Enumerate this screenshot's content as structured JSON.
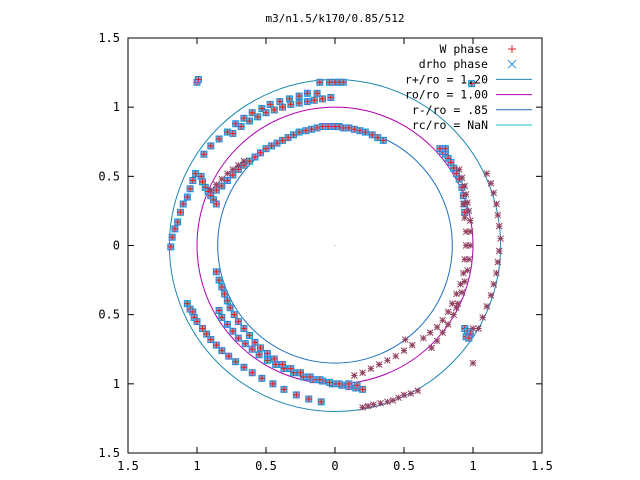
{
  "chart_data": {
    "type": "scatter",
    "title": "m3/n1.5/k170/0.85/512",
    "xlim": [
      -1.5,
      1.5
    ],
    "ylim": [
      -1.5,
      1.5
    ],
    "x_tick_labels": [
      "1.5",
      "1",
      "0.5",
      "0",
      "0.5",
      "1",
      "1.5"
    ],
    "x_ticks": [
      -1.5,
      -1,
      -0.5,
      0,
      0.5,
      1,
      1.5
    ],
    "y_tick_labels": [
      "1.5",
      "1",
      "0.5",
      "0",
      "0.5",
      "1",
      "1.5"
    ],
    "y_ticks": [
      1.5,
      1,
      0.5,
      0,
      -0.5,
      -1,
      -1.5
    ],
    "grid": false,
    "legend_position": "top-right",
    "circles": [
      {
        "name": "r+/ro = 1.20",
        "r": 1.2,
        "color": "#1e88b0"
      },
      {
        "name": "ro/ro = 1.00",
        "r": 1.0,
        "color": "#b000b0"
      },
      {
        "name": "r-/ro = .85",
        "r": 0.85,
        "color": "#2070c0"
      },
      {
        "name": "rc/ro = NaN",
        "r": null,
        "color": "#20c0c0"
      }
    ],
    "series": [
      {
        "name": "W phase",
        "marker": "plus",
        "color": "#e02020"
      },
      {
        "name": "drho phase",
        "marker": "cross",
        "color": "#2090e0"
      }
    ],
    "star_color": "#904060",
    "box_points": [
      [
        -1.0,
        1.18
      ],
      [
        -0.99,
        1.2
      ],
      [
        0.99,
        1.17
      ],
      [
        -0.11,
        1.18
      ],
      [
        -0.04,
        1.18
      ],
      [
        0.0,
        1.18
      ],
      [
        0.03,
        1.18
      ],
      [
        0.06,
        1.18
      ],
      [
        -0.13,
        1.1
      ],
      [
        -0.2,
        1.1
      ],
      [
        -0.26,
        1.08
      ],
      [
        -0.33,
        1.06
      ],
      [
        -0.4,
        1.04
      ],
      [
        -0.47,
        1.02
      ],
      [
        -0.53,
        0.99
      ],
      [
        -0.6,
        0.96
      ],
      [
        -0.66,
        0.92
      ],
      [
        -0.72,
        0.88
      ],
      [
        -0.78,
        0.82
      ],
      [
        -0.84,
        0.77
      ],
      [
        -0.9,
        0.72
      ],
      [
        -0.95,
        0.66
      ],
      [
        -1.01,
        0.52
      ],
      [
        -1.03,
        0.47
      ],
      [
        -1.05,
        0.41
      ],
      [
        -1.07,
        0.35
      ],
      [
        -1.1,
        0.3
      ],
      [
        -1.12,
        0.24
      ],
      [
        -1.14,
        0.17
      ],
      [
        -1.16,
        0.12
      ],
      [
        -1.18,
        0.06
      ],
      [
        -1.19,
        -0.01
      ],
      [
        -1.07,
        -0.42
      ],
      [
        -1.05,
        -0.46
      ],
      [
        -1.03,
        -0.48
      ],
      [
        -1.02,
        -0.52
      ],
      [
        -1.0,
        -0.55
      ],
      [
        -0.96,
        -0.6
      ],
      [
        -0.93,
        -0.64
      ],
      [
        -0.9,
        -0.68
      ],
      [
        -0.86,
        -0.72
      ],
      [
        -0.82,
        -0.76
      ],
      [
        -0.77,
        -0.8
      ],
      [
        -0.72,
        -0.84
      ],
      [
        -0.66,
        -0.88
      ],
      [
        -0.6,
        -0.92
      ],
      [
        -0.53,
        -0.96
      ],
      [
        -0.45,
        -1.0
      ],
      [
        -0.37,
        -1.04
      ],
      [
        -0.28,
        -1.08
      ],
      [
        -0.19,
        -1.11
      ],
      [
        -0.1,
        -1.13
      ],
      [
        -0.03,
        1.07
      ],
      [
        -0.09,
        1.06
      ],
      [
        -0.15,
        1.05
      ],
      [
        -0.2,
        1.04
      ],
      [
        -0.26,
        1.03
      ],
      [
        -0.32,
        1.02
      ],
      [
        -0.38,
        1.0
      ],
      [
        -0.44,
        0.98
      ],
      [
        -0.5,
        0.96
      ],
      [
        -0.56,
        0.93
      ],
      [
        -0.62,
        0.9
      ],
      [
        -0.68,
        0.86
      ],
      [
        -0.74,
        0.81
      ],
      [
        -0.97,
        0.5
      ],
      [
        -0.96,
        0.46
      ],
      [
        -0.94,
        0.42
      ],
      [
        -0.92,
        0.39
      ],
      [
        -0.9,
        0.36
      ],
      [
        -0.88,
        0.33
      ],
      [
        -0.86,
        0.3
      ],
      [
        -0.84,
        -0.47
      ],
      [
        -0.82,
        -0.52
      ],
      [
        -0.78,
        -0.57
      ],
      [
        -0.74,
        -0.62
      ],
      [
        -0.7,
        -0.67
      ],
      [
        -0.65,
        -0.71
      ],
      [
        -0.6,
        -0.75
      ],
      [
        -0.55,
        -0.79
      ],
      [
        -0.49,
        -0.83
      ],
      [
        -0.43,
        -0.86
      ],
      [
        -0.37,
        -0.89
      ],
      [
        -0.3,
        -0.92
      ],
      [
        -0.23,
        -0.95
      ],
      [
        -0.16,
        -0.97
      ],
      [
        -0.09,
        -0.98
      ],
      [
        -0.02,
        -1.0
      ],
      [
        0.05,
        -1.01
      ],
      [
        0.1,
        -1.02
      ],
      [
        0.15,
        -1.03
      ],
      [
        0.2,
        -1.04
      ],
      [
        0.0,
        0.86
      ],
      [
        0.03,
        0.86
      ],
      [
        0.06,
        0.85
      ],
      [
        0.1,
        0.85
      ],
      [
        0.14,
        0.84
      ],
      [
        0.18,
        0.83
      ],
      [
        0.22,
        0.82
      ],
      [
        0.27,
        0.8
      ],
      [
        0.31,
        0.78
      ],
      [
        0.35,
        0.76
      ],
      [
        -0.05,
        0.86
      ],
      [
        -0.09,
        0.86
      ],
      [
        -0.13,
        0.85
      ],
      [
        -0.17,
        0.84
      ],
      [
        -0.21,
        0.83
      ],
      [
        -0.26,
        0.82
      ],
      [
        -0.3,
        0.8
      ],
      [
        -0.34,
        0.78
      ],
      [
        -0.38,
        0.76
      ],
      [
        -0.42,
        0.74
      ],
      [
        -0.46,
        0.72
      ],
      [
        -0.5,
        0.7
      ],
      [
        -0.54,
        0.67
      ],
      [
        -0.58,
        0.64
      ],
      [
        -0.62,
        0.61
      ],
      [
        -0.66,
        0.58
      ],
      [
        -0.7,
        0.55
      ],
      [
        -0.74,
        0.51
      ],
      [
        -0.78,
        0.47
      ],
      [
        -0.82,
        0.43
      ],
      [
        -0.86,
        0.4
      ],
      [
        -0.86,
        -0.19
      ],
      [
        -0.84,
        -0.25
      ],
      [
        -0.82,
        -0.3
      ],
      [
        -0.8,
        -0.35
      ],
      [
        -0.78,
        -0.4
      ],
      [
        -0.76,
        -0.45
      ],
      [
        -0.73,
        -0.5
      ],
      [
        -0.7,
        -0.55
      ],
      [
        -0.66,
        -0.6
      ],
      [
        -0.62,
        -0.65
      ],
      [
        -0.58,
        -0.7
      ],
      [
        -0.54,
        -0.74
      ],
      [
        -0.49,
        -0.78
      ],
      [
        -0.44,
        -0.82
      ],
      [
        -0.38,
        -0.86
      ],
      [
        -0.32,
        -0.89
      ],
      [
        -0.25,
        -0.92
      ],
      [
        -0.18,
        -0.95
      ],
      [
        -0.11,
        -0.97
      ],
      [
        -0.04,
        -0.99
      ],
      [
        0.03,
        -1.0
      ],
      [
        0.1,
        -1.0
      ],
      [
        0.16,
        -1.01
      ],
      [
        0.8,
        0.66
      ],
      [
        0.82,
        0.63
      ],
      [
        0.84,
        0.6
      ],
      [
        0.86,
        0.56
      ],
      [
        0.88,
        0.52
      ],
      [
        0.9,
        0.48
      ],
      [
        0.92,
        0.42
      ],
      [
        0.93,
        0.36
      ],
      [
        0.94,
        0.3
      ],
      [
        0.94,
        0.24
      ],
      [
        0.78,
        0.68
      ],
      [
        0.76,
        0.7
      ],
      [
        0.8,
        0.7
      ],
      [
        0.94,
        -0.6
      ],
      [
        0.96,
        -0.62
      ],
      [
        0.98,
        -0.64
      ],
      [
        0.95,
        -0.66
      ],
      [
        0.97,
        -0.67
      ]
    ],
    "star_points": [
      [
        1.1,
        0.52
      ],
      [
        1.13,
        0.45
      ],
      [
        1.15,
        0.38
      ],
      [
        1.17,
        0.3
      ],
      [
        1.18,
        0.22
      ],
      [
        1.19,
        0.14
      ],
      [
        1.2,
        0.05
      ],
      [
        1.19,
        -0.04
      ],
      [
        1.18,
        -0.12
      ],
      [
        1.17,
        -0.2
      ],
      [
        1.15,
        -0.28
      ],
      [
        1.13,
        -0.36
      ],
      [
        1.1,
        -0.44
      ],
      [
        1.07,
        -0.52
      ],
      [
        1.04,
        -0.6
      ],
      [
        0.9,
        0.55
      ],
      [
        0.92,
        0.49
      ],
      [
        0.94,
        0.43
      ],
      [
        0.95,
        0.37
      ],
      [
        0.96,
        0.31
      ],
      [
        0.97,
        0.25
      ],
      [
        0.98,
        0.18
      ],
      [
        0.98,
        0.1
      ],
      [
        0.98,
        0.0
      ],
      [
        0.97,
        -0.1
      ],
      [
        0.96,
        -0.18
      ],
      [
        0.94,
        -0.26
      ],
      [
        0.92,
        -0.34
      ],
      [
        0.89,
        -0.42
      ],
      [
        0.86,
        -0.5
      ],
      [
        0.82,
        -0.57
      ],
      [
        0.78,
        -0.63
      ],
      [
        0.74,
        -0.69
      ],
      [
        0.7,
        -0.74
      ],
      [
        0.93,
        0.3
      ],
      [
        0.94,
        0.2
      ],
      [
        0.95,
        0.1
      ],
      [
        0.95,
        0.0
      ],
      [
        0.94,
        -0.1
      ],
      [
        0.93,
        -0.2
      ],
      [
        0.91,
        -0.28
      ],
      [
        0.88,
        -0.35
      ],
      [
        0.85,
        -0.42
      ],
      [
        0.82,
        -0.48
      ],
      [
        0.78,
        -0.54
      ],
      [
        0.74,
        -0.59
      ],
      [
        0.69,
        -0.63
      ],
      [
        0.64,
        -0.67
      ],
      [
        0.56,
        -0.72
      ],
      [
        0.5,
        -0.76
      ],
      [
        0.44,
        -0.8
      ],
      [
        0.38,
        -0.83
      ],
      [
        0.32,
        -0.86
      ],
      [
        0.26,
        -0.89
      ],
      [
        0.2,
        -0.92
      ],
      [
        0.14,
        -0.94
      ],
      [
        0.5,
        -1.08
      ],
      [
        0.46,
        -1.1
      ],
      [
        0.42,
        -1.12
      ],
      [
        0.38,
        -1.13
      ],
      [
        0.33,
        -1.14
      ],
      [
        0.28,
        -1.15
      ],
      [
        0.24,
        -1.16
      ],
      [
        0.2,
        -1.17
      ],
      [
        0.6,
        -1.05
      ],
      [
        0.55,
        -1.07
      ],
      [
        0.51,
        -0.68
      ],
      [
        1.0,
        -0.85
      ],
      [
        0.88,
        -0.45
      ],
      [
        1.0,
        -0.6
      ],
      [
        -0.9,
        0.4
      ],
      [
        -0.86,
        0.44
      ],
      [
        -0.82,
        0.48
      ],
      [
        -0.78,
        0.52
      ],
      [
        -0.74,
        0.55
      ],
      [
        -0.7,
        0.58
      ],
      [
        -0.66,
        0.61
      ]
    ]
  }
}
